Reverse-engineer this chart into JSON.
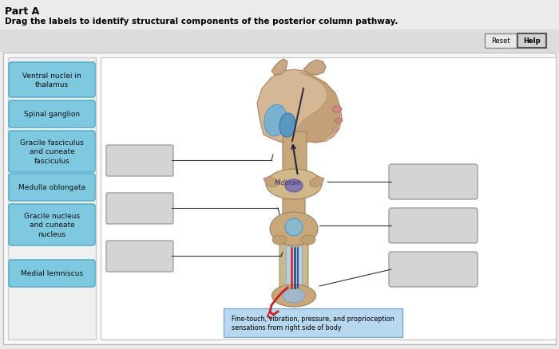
{
  "title_part": "Part A",
  "subtitle": "Drag the labels to identify structural components of the posterior column pathway.",
  "bg_color": "#ebebeb",
  "panel_bg": "#ffffff",
  "left_labels": [
    "Ventral nuclei in\nthalamus",
    "Spinal ganglion",
    "Gracile fasciculus\nand cuneate\nfasciculus",
    "Medulla oblongata",
    "Gracile nucleus\nand cuneate\nnucleus",
    "Medial lemniscus"
  ],
  "label_box_color": "#7ec8e0",
  "label_box_edge": "#5ab0cc",
  "blank_box_color": "#d4d4d4",
  "blank_box_edge": "#a0a0a0",
  "annotation_box_color": "#b8d8f0",
  "annotation_text": "Fine-touch, vibration, pressure, and proprioception\nsensations from right side of body",
  "midbrain_label": "Midbrain",
  "brain_tan": "#d4b896",
  "brain_tan_dark": "#c4a07a",
  "brain_brown": "#b08060",
  "brain_blue": "#7ab0d0",
  "brain_blue2": "#5898c0",
  "midbrain_tan": "#d0b88a",
  "midbrain_purple": "#9080a8",
  "medulla_tan": "#c8a87a",
  "spinal_blue": "#a8c8d8",
  "red_fiber": "#cc2222",
  "blue_fiber": "#224488"
}
